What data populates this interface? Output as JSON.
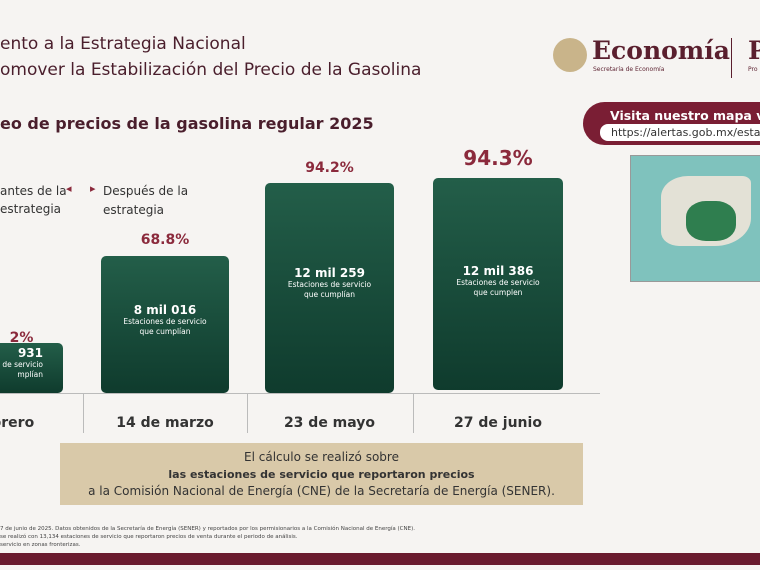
{
  "header": {
    "title_lines": [
      "ento a la Estrategia Nacional",
      "omover la Estabilización del Precio de la Gasolina"
    ],
    "logo": "Economía",
    "logo_sub": "Secretaría de Economía",
    "logo_right": "P",
    "logo_right_sub": "Pro"
  },
  "subtitle": "eo de precios de la gasolina regular 2025",
  "map_box": {
    "title": "Visita nuestro mapa virtu",
    "link": "https://alertas.gob.mx/estacion"
  },
  "phases": {
    "before": [
      "antes de la",
      "estrategia"
    ],
    "after": [
      "Después de la",
      "estrategia"
    ]
  },
  "columns": [
    {
      "pct": "2%",
      "count": "931",
      "desc": [
        "de servicio",
        "mplían"
      ],
      "date": "ebrero"
    },
    {
      "pct": "68.8%",
      "count": "8 mil 016",
      "desc": [
        "Estaciones de servicio",
        "que cumplían"
      ],
      "date": "14 de marzo"
    },
    {
      "pct": "94.2%",
      "count": "12 mil 259",
      "desc": [
        "Estaciones de servicio",
        "que cumplían"
      ],
      "date": "23 de mayo"
    },
    {
      "pct": "94.3%",
      "count": "12 mil 386",
      "desc": [
        "Estaciones de servicio",
        "que cumplen"
      ],
      "date": "27 de junio"
    }
  ],
  "note": [
    "El cálculo se realizó sobre",
    "las estaciones de servicio que reportaron precios",
    "a la Comisión Nacional de Energía (CNE) de la Secretaría de Energía (SENER)."
  ],
  "footnotes": [
    "7 de junio de 2025. Datos obtenidos de la Secretaría de Energía (SENER) y reportados por los permisionarios a la Comisión Nacional de Energía (CNE).",
    "se realizó con 13,134 estaciones de servicio que reportaron precios de venta durante el periodo de análisis.",
    "servicio en zonas fronterizas."
  ]
}
